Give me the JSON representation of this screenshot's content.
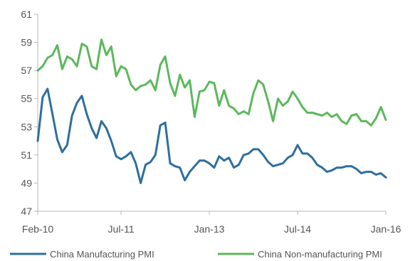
{
  "chart_data": {
    "type": "line",
    "title": "",
    "xlabel": "",
    "ylabel": "",
    "ylim": [
      47,
      61
    ],
    "yticks": [
      47,
      49,
      51,
      53,
      55,
      57,
      59,
      61
    ],
    "ytick_labels": [
      "47",
      "49",
      "51",
      "53",
      "55",
      "57",
      "59",
      "61"
    ],
    "x": [
      "2010-02",
      "2010-03",
      "2010-04",
      "2010-05",
      "2010-06",
      "2010-07",
      "2010-08",
      "2010-09",
      "2010-10",
      "2010-11",
      "2010-12",
      "2011-01",
      "2011-02",
      "2011-03",
      "2011-04",
      "2011-05",
      "2011-06",
      "2011-07",
      "2011-08",
      "2011-09",
      "2011-10",
      "2011-11",
      "2011-12",
      "2012-01",
      "2012-02",
      "2012-03",
      "2012-04",
      "2012-05",
      "2012-06",
      "2012-07",
      "2012-08",
      "2012-09",
      "2012-10",
      "2012-11",
      "2012-12",
      "2013-01",
      "2013-02",
      "2013-03",
      "2013-04",
      "2013-05",
      "2013-06",
      "2013-07",
      "2013-08",
      "2013-09",
      "2013-10",
      "2013-11",
      "2013-12",
      "2014-01",
      "2014-02",
      "2014-03",
      "2014-04",
      "2014-05",
      "2014-06",
      "2014-07",
      "2014-08",
      "2014-09",
      "2014-10",
      "2014-11",
      "2014-12",
      "2015-01",
      "2015-02",
      "2015-03",
      "2015-04",
      "2015-05",
      "2015-06",
      "2015-07",
      "2015-08",
      "2015-09",
      "2015-10",
      "2015-11",
      "2015-12",
      "2016-01"
    ],
    "xticks": [
      "2010-02",
      "2011-07",
      "2013-01",
      "2014-07",
      "2016-01"
    ],
    "xtick_labels": [
      "Feb-10",
      "Jul-11",
      "Jan-13",
      "Jul-14",
      "Jan-16"
    ],
    "grid": false,
    "legend_position": "bottom",
    "series": [
      {
        "name": "China Manufacturing PMI",
        "color": "#2e6f9e",
        "values": [
          52.0,
          55.1,
          55.7,
          53.9,
          52.1,
          51.2,
          51.7,
          53.8,
          54.7,
          55.2,
          53.9,
          52.9,
          52.2,
          53.4,
          52.9,
          52.0,
          50.9,
          50.7,
          50.9,
          51.2,
          50.4,
          49.0,
          50.3,
          50.5,
          51.0,
          53.1,
          53.3,
          50.4,
          50.2,
          50.1,
          49.2,
          49.8,
          50.2,
          50.6,
          50.6,
          50.4,
          50.1,
          50.9,
          50.6,
          50.8,
          50.1,
          50.3,
          51.0,
          51.1,
          51.4,
          51.4,
          51.0,
          50.5,
          50.2,
          50.3,
          50.4,
          50.8,
          51.0,
          51.7,
          51.1,
          51.1,
          50.8,
          50.3,
          50.1,
          49.8,
          49.9,
          50.1,
          50.1,
          50.2,
          50.2,
          50.0,
          49.7,
          49.8,
          49.8,
          49.6,
          49.7,
          49.4
        ]
      },
      {
        "name": "China Non-manufacturing PMI",
        "color": "#5cb85c",
        "values": [
          57.0,
          57.3,
          57.9,
          58.1,
          58.8,
          57.1,
          58.0,
          57.8,
          57.3,
          58.9,
          58.7,
          57.3,
          57.1,
          59.2,
          58.1,
          58.7,
          56.6,
          57.3,
          57.1,
          56.0,
          55.6,
          55.9,
          56.0,
          56.3,
          55.6,
          57.4,
          58.0,
          56.1,
          55.2,
          56.7,
          55.8,
          56.3,
          53.7,
          55.5,
          55.6,
          56.2,
          56.1,
          54.5,
          55.6,
          54.5,
          54.3,
          53.9,
          54.1,
          53.9,
          55.4,
          56.3,
          56.0,
          54.8,
          53.4,
          55.0,
          54.5,
          54.8,
          55.5,
          55.0,
          54.4,
          54.0,
          54.0,
          53.9,
          53.8,
          54.0,
          53.7,
          53.9,
          53.4,
          53.2,
          53.8,
          53.9,
          53.4,
          53.4,
          53.1,
          53.6,
          54.4,
          53.5
        ]
      }
    ]
  }
}
